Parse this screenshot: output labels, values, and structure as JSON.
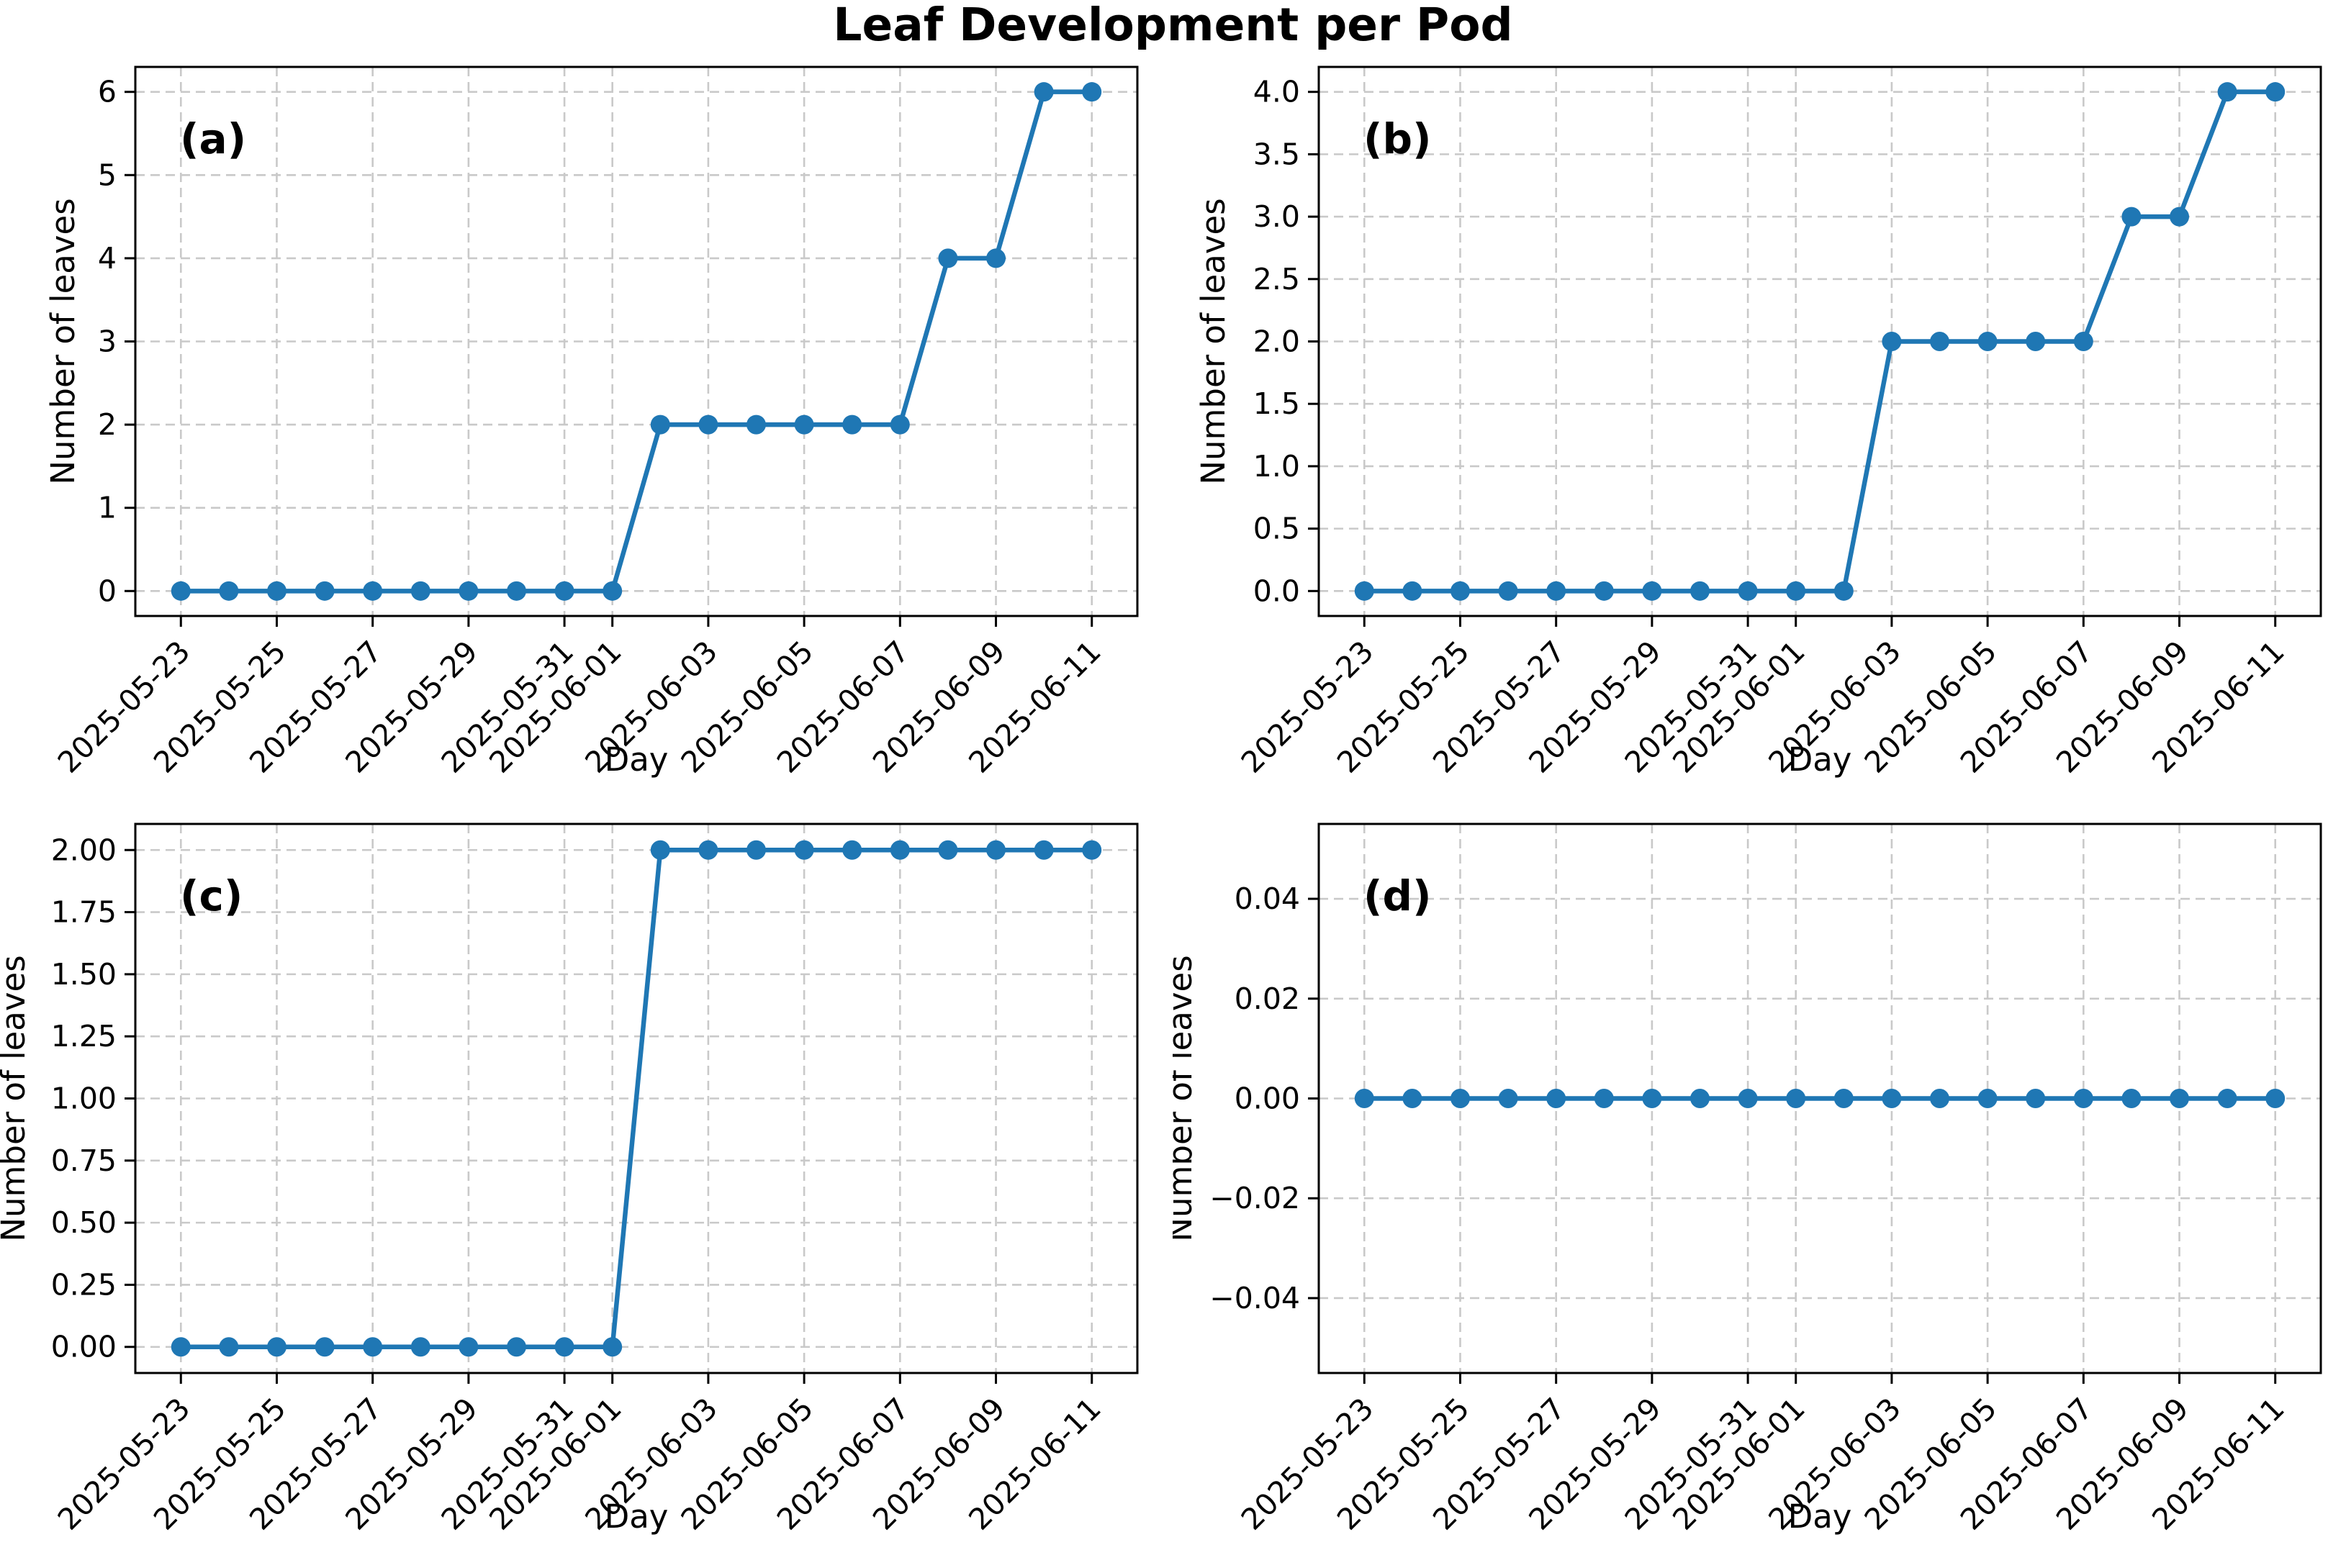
{
  "figure": {
    "title": "Leaf Development per Pod"
  },
  "axis_labels": {
    "x": "Day",
    "y": "Number of leaves"
  },
  "style": {
    "line_color": "#1f77b4",
    "marker_color": "#1f77b4",
    "grid_color": "#c9c9c9",
    "spine_color": "#000000",
    "text_color": "#000000"
  },
  "chart_data": {
    "type": "line",
    "title": "Leaf Development per Pod",
    "xlabel": "Day",
    "ylabel": "Number of leaves",
    "grid": true,
    "legend": "none",
    "x_dates": [
      "2025-05-23",
      "2025-05-24",
      "2025-05-25",
      "2025-05-26",
      "2025-05-27",
      "2025-05-28",
      "2025-05-29",
      "2025-05-30",
      "2025-05-31",
      "2025-06-01",
      "2025-06-02",
      "2025-06-03",
      "2025-06-04",
      "2025-06-05",
      "2025-06-06",
      "2025-06-07",
      "2025-06-08",
      "2025-06-09",
      "2025-06-10",
      "2025-06-11"
    ],
    "x_tick_indices": [
      0,
      2,
      4,
      6,
      8,
      9,
      11,
      13,
      15,
      17,
      19
    ],
    "x_tick_labels": [
      "2025-05-23",
      "2025-05-25",
      "2025-05-27",
      "2025-05-29",
      "2025-05-31",
      "2025-06-01",
      "2025-06-03",
      "2025-06-05",
      "2025-06-07",
      "2025-06-09",
      "2025-06-11"
    ],
    "x_tick_rotation_deg": 45,
    "xlim_day_index": [
      -0.95,
      19.95
    ],
    "subplots": [
      {
        "panel": "a",
        "tag": "(a)",
        "values": [
          0,
          0,
          0,
          0,
          0,
          0,
          0,
          0,
          0,
          0,
          2,
          2,
          2,
          2,
          2,
          2,
          4,
          4,
          6,
          6
        ],
        "ylim": [
          -0.3,
          6.3
        ],
        "yticks": [
          0,
          1,
          2,
          3,
          4,
          5,
          6
        ],
        "ytick_labels": [
          "0",
          "1",
          "2",
          "3",
          "4",
          "5",
          "6"
        ]
      },
      {
        "panel": "b",
        "tag": "(b)",
        "values": [
          0,
          0,
          0,
          0,
          0,
          0,
          0,
          0,
          0,
          0,
          0,
          2,
          2,
          2,
          2,
          2,
          3,
          3,
          4,
          4
        ],
        "ylim": [
          -0.2,
          4.2
        ],
        "yticks": [
          0,
          0.5,
          1,
          1.5,
          2,
          2.5,
          3,
          3.5,
          4
        ],
        "ytick_labels": [
          "0.0",
          "0.5",
          "1.0",
          "1.5",
          "2.0",
          "2.5",
          "3.0",
          "3.5",
          "4.0"
        ]
      },
      {
        "panel": "c",
        "tag": "(c)",
        "values": [
          0,
          0,
          0,
          0,
          0,
          0,
          0,
          0,
          0,
          0,
          2,
          2,
          2,
          2,
          2,
          2,
          2,
          2,
          2,
          2
        ],
        "ylim": [
          -0.105,
          2.105
        ],
        "yticks": [
          0,
          0.25,
          0.5,
          0.75,
          1,
          1.25,
          1.5,
          1.75,
          2
        ],
        "ytick_labels": [
          "0.00",
          "0.25",
          "0.50",
          "0.75",
          "1.00",
          "1.25",
          "1.50",
          "1.75",
          "2.00"
        ]
      },
      {
        "panel": "d",
        "tag": "(d)",
        "values": [
          0,
          0,
          0,
          0,
          0,
          0,
          0,
          0,
          0,
          0,
          0,
          0,
          0,
          0,
          0,
          0,
          0,
          0,
          0,
          0
        ],
        "ylim": [
          -0.055,
          0.055
        ],
        "yticks": [
          -0.04,
          -0.02,
          0,
          0.02,
          0.04
        ],
        "ytick_labels": [
          "−0.04",
          "−0.02",
          "0.00",
          "0.02",
          "0.04"
        ]
      }
    ]
  }
}
